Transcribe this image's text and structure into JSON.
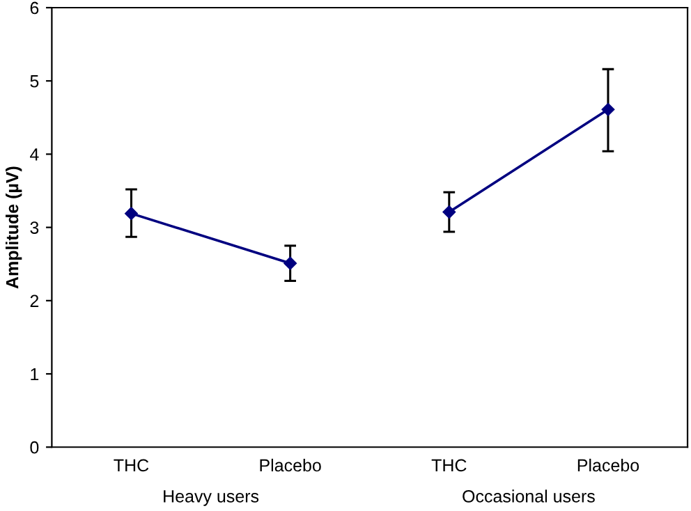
{
  "chart_data": {
    "type": "line",
    "ylabel": "Amplitude (µV)",
    "categories": [
      "THC",
      "Placebo",
      "THC",
      "Placebo"
    ],
    "series": [
      {
        "color": "#000080",
        "values": [
          3.19,
          2.51,
          null,
          null
        ],
        "errors": [
          [
            2.87,
            3.52
          ],
          [
            2.27,
            2.75
          ],
          null,
          null
        ]
      },
      {
        "color": "#000080",
        "values": [
          null,
          null,
          3.21,
          4.61
        ],
        "errors": [
          null,
          null,
          [
            2.94,
            3.48
          ],
          [
            4.04,
            5.16
          ]
        ]
      }
    ],
    "annotations": [
      "Heavy users",
      "Occasional users"
    ],
    "ylim": [
      0,
      6
    ],
    "yticks": [
      0,
      1,
      2,
      3,
      4,
      5,
      6
    ],
    "marker": "diamond",
    "line_style": "solid",
    "grid": false
  }
}
